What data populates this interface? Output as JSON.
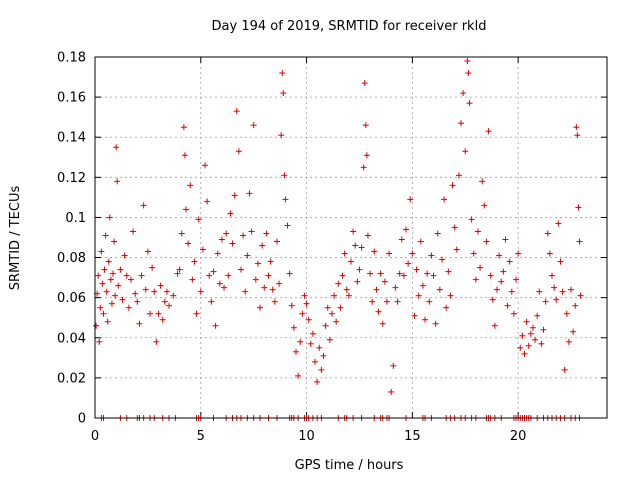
{
  "chart_data": {
    "type": "scatter",
    "title": "Day 194 of 2019, SRMTID for receiver rkld",
    "xlabel": "GPS time / hours",
    "ylabel": "SRMTID / TECUs",
    "xlim": [
      0,
      24.2
    ],
    "ylim": [
      0,
      0.18
    ],
    "xticks": [
      0,
      5,
      10,
      15,
      20
    ],
    "xtick_labels": [
      "0",
      "5",
      "10",
      "15",
      "20"
    ],
    "yticks": [
      0,
      0.02,
      0.04,
      0.06,
      0.08,
      0.1,
      0.12,
      0.14,
      0.16,
      0.18
    ],
    "ytick_labels": [
      "0",
      "0.02",
      "0.04",
      "0.06",
      "0.08",
      "0.1",
      "0.12",
      "0.14",
      "0.16",
      "0.18"
    ],
    "grid": true,
    "marker": "+",
    "color": "#dd0000",
    "series": [
      {
        "name": "SRMTID",
        "points": [
          [
            0.05,
            0.046
          ],
          [
            0.1,
            0.062
          ],
          [
            0.15,
            0.071
          ],
          [
            0.2,
            0.038
          ],
          [
            0.25,
            0.055
          ],
          [
            0.3,
            0.083
          ],
          [
            0.35,
            0.067
          ],
          [
            0.4,
            0.052
          ],
          [
            0.45,
            0.074
          ],
          [
            0.5,
            0.091
          ],
          [
            0.55,
            0.063
          ],
          [
            0.6,
            0.048
          ],
          [
            0.65,
            0.078
          ],
          [
            0.7,
            0.1
          ],
          [
            0.75,
            0.069
          ],
          [
            0.8,
            0.057
          ],
          [
            0.85,
            0.072
          ],
          [
            0.9,
            0.088
          ],
          [
            0.95,
            0.061
          ],
          [
            1.0,
            0.135
          ],
          [
            1.05,
            0.118
          ],
          [
            1.1,
            0.066
          ],
          [
            1.2,
            0.074
          ],
          [
            1.3,
            0.059
          ],
          [
            1.4,
            0.081
          ],
          [
            1.5,
            0.071
          ],
          [
            1.6,
            0.055
          ],
          [
            1.7,
            0.069
          ],
          [
            1.8,
            0.093
          ],
          [
            1.9,
            0.062
          ],
          [
            2.0,
            0.058
          ],
          [
            2.1,
            0.047
          ],
          [
            2.2,
            0.071
          ],
          [
            2.3,
            0.106
          ],
          [
            2.4,
            0.064
          ],
          [
            2.5,
            0.083
          ],
          [
            2.6,
            0.052
          ],
          [
            2.7,
            0.075
          ],
          [
            2.8,
            0.063
          ],
          [
            2.9,
            0.038
          ],
          [
            3.0,
            0.052
          ],
          [
            3.1,
            0.066
          ],
          [
            3.2,
            0.049
          ],
          [
            3.3,
            0.058
          ],
          [
            3.4,
            0.063
          ],
          [
            3.5,
            0.056
          ],
          [
            3.7,
            0.061
          ],
          [
            3.9,
            0.072
          ],
          [
            4.0,
            0.074
          ],
          [
            4.1,
            0.092
          ],
          [
            4.2,
            0.145
          ],
          [
            4.25,
            0.131
          ],
          [
            4.3,
            0.104
          ],
          [
            4.4,
            0.087
          ],
          [
            4.5,
            0.116
          ],
          [
            4.6,
            0.069
          ],
          [
            4.7,
            0.078
          ],
          [
            4.8,
            0.052
          ],
          [
            4.9,
            0.099
          ],
          [
            5.0,
            0.063
          ],
          [
            5.1,
            0.084
          ],
          [
            5.2,
            0.126
          ],
          [
            5.3,
            0.108
          ],
          [
            5.4,
            0.071
          ],
          [
            5.5,
            0.058
          ],
          [
            5.6,
            0.073
          ],
          [
            5.7,
            0.046
          ],
          [
            5.8,
            0.082
          ],
          [
            5.9,
            0.067
          ],
          [
            6.0,
            0.089
          ],
          [
            6.1,
            0.065
          ],
          [
            6.2,
            0.092
          ],
          [
            6.3,
            0.071
          ],
          [
            6.4,
            0.102
          ],
          [
            6.5,
            0.087
          ],
          [
            6.6,
            0.111
          ],
          [
            6.7,
            0.153
          ],
          [
            6.8,
            0.133
          ],
          [
            6.9,
            0.074
          ],
          [
            7.0,
            0.091
          ],
          [
            7.1,
            0.063
          ],
          [
            7.2,
            0.081
          ],
          [
            7.3,
            0.112
          ],
          [
            7.4,
            0.093
          ],
          [
            7.5,
            0.146
          ],
          [
            7.6,
            0.069
          ],
          [
            7.7,
            0.077
          ],
          [
            7.8,
            0.055
          ],
          [
            7.9,
            0.086
          ],
          [
            8.0,
            0.065
          ],
          [
            8.1,
            0.092
          ],
          [
            8.2,
            0.071
          ],
          [
            8.3,
            0.078
          ],
          [
            8.4,
            0.064
          ],
          [
            8.5,
            0.058
          ],
          [
            8.6,
            0.088
          ],
          [
            8.7,
            0.067
          ],
          [
            8.8,
            0.141
          ],
          [
            8.85,
            0.172
          ],
          [
            8.9,
            0.162
          ],
          [
            8.95,
            0.121
          ],
          [
            9.0,
            0.109
          ],
          [
            9.1,
            0.096
          ],
          [
            9.2,
            0.072
          ],
          [
            9.3,
            0.056
          ],
          [
            9.4,
            0.045
          ],
          [
            9.5,
            0.033
          ],
          [
            9.6,
            0.021
          ],
          [
            9.7,
            0.038
          ],
          [
            9.8,
            0.052
          ],
          [
            9.9,
            0.061
          ],
          [
            10.0,
            0.057
          ],
          [
            10.1,
            0.049
          ],
          [
            10.2,
            0.037
          ],
          [
            10.3,
            0.042
          ],
          [
            10.4,
            0.028
          ],
          [
            10.5,
            0.018
          ],
          [
            10.6,
            0.035
          ],
          [
            10.7,
            0.024
          ],
          [
            10.8,
            0.031
          ],
          [
            10.9,
            0.046
          ],
          [
            11.0,
            0.055
          ],
          [
            11.1,
            0.039
          ],
          [
            11.2,
            0.052
          ],
          [
            11.3,
            0.061
          ],
          [
            11.4,
            0.048
          ],
          [
            11.5,
            0.067
          ],
          [
            11.6,
            0.055
          ],
          [
            11.7,
            0.071
          ],
          [
            11.8,
            0.082
          ],
          [
            11.9,
            0.064
          ],
          [
            12.0,
            0.061
          ],
          [
            12.1,
            0.078
          ],
          [
            12.2,
            0.093
          ],
          [
            12.3,
            0.086
          ],
          [
            12.4,
            0.068
          ],
          [
            12.5,
            0.074
          ],
          [
            12.6,
            0.085
          ],
          [
            12.7,
            0.125
          ],
          [
            12.75,
            0.167
          ],
          [
            12.8,
            0.146
          ],
          [
            12.85,
            0.131
          ],
          [
            12.9,
            0.091
          ],
          [
            13.0,
            0.072
          ],
          [
            13.1,
            0.058
          ],
          [
            13.2,
            0.083
          ],
          [
            13.3,
            0.064
          ],
          [
            13.4,
            0.053
          ],
          [
            13.5,
            0.072
          ],
          [
            13.6,
            0.047
          ],
          [
            13.7,
            0.068
          ],
          [
            13.8,
            0.058
          ],
          [
            13.9,
            0.082
          ],
          [
            14.0,
            0.013
          ],
          [
            14.1,
            0.026
          ],
          [
            14.2,
            0.065
          ],
          [
            14.3,
            0.058
          ],
          [
            14.4,
            0.072
          ],
          [
            14.5,
            0.089
          ],
          [
            14.6,
            0.071
          ],
          [
            14.7,
            0.094
          ],
          [
            14.8,
            0.077
          ],
          [
            14.9,
            0.109
          ],
          [
            15.0,
            0.082
          ],
          [
            15.1,
            0.051
          ],
          [
            15.2,
            0.074
          ],
          [
            15.3,
            0.061
          ],
          [
            15.4,
            0.088
          ],
          [
            15.5,
            0.066
          ],
          [
            15.6,
            0.049
          ],
          [
            15.7,
            0.072
          ],
          [
            15.8,
            0.058
          ],
          [
            15.9,
            0.081
          ],
          [
            16.0,
            0.071
          ],
          [
            16.1,
            0.047
          ],
          [
            16.2,
            0.092
          ],
          [
            16.3,
            0.064
          ],
          [
            16.4,
            0.079
          ],
          [
            16.5,
            0.109
          ],
          [
            16.6,
            0.055
          ],
          [
            16.7,
            0.073
          ],
          [
            16.8,
            0.061
          ],
          [
            16.9,
            0.116
          ],
          [
            17.0,
            0.095
          ],
          [
            17.1,
            0.084
          ],
          [
            17.2,
            0.121
          ],
          [
            17.3,
            0.147
          ],
          [
            17.4,
            0.162
          ],
          [
            17.5,
            0.133
          ],
          [
            17.6,
            0.178
          ],
          [
            17.65,
            0.172
          ],
          [
            17.7,
            0.157
          ],
          [
            17.8,
            0.099
          ],
          [
            17.9,
            0.082
          ],
          [
            18.0,
            0.069
          ],
          [
            18.1,
            0.093
          ],
          [
            18.2,
            0.075
          ],
          [
            18.3,
            0.118
          ],
          [
            18.4,
            0.106
          ],
          [
            18.5,
            0.088
          ],
          [
            18.6,
            0.143
          ],
          [
            18.7,
            0.071
          ],
          [
            18.8,
            0.059
          ],
          [
            18.9,
            0.046
          ],
          [
            19.0,
            0.064
          ],
          [
            19.1,
            0.081
          ],
          [
            19.2,
            0.068
          ],
          [
            19.3,
            0.073
          ],
          [
            19.4,
            0.089
          ],
          [
            19.5,
            0.056
          ],
          [
            19.6,
            0.078
          ],
          [
            19.7,
            0.063
          ],
          [
            19.8,
            0.052
          ],
          [
            19.9,
            0.069
          ],
          [
            20.0,
            0.082
          ],
          [
            20.1,
            0.035
          ],
          [
            20.2,
            0.041
          ],
          [
            20.3,
            0.032
          ],
          [
            20.4,
            0.048
          ],
          [
            20.5,
            0.036
          ],
          [
            20.6,
            0.042
          ],
          [
            20.7,
            0.045
          ],
          [
            20.8,
            0.039
          ],
          [
            20.9,
            0.051
          ],
          [
            21.0,
            0.063
          ],
          [
            21.1,
            0.037
          ],
          [
            21.2,
            0.044
          ],
          [
            21.3,
            0.058
          ],
          [
            21.4,
            0.092
          ],
          [
            21.5,
            0.082
          ],
          [
            21.6,
            0.071
          ],
          [
            21.7,
            0.065
          ],
          [
            21.8,
            0.059
          ],
          [
            21.9,
            0.097
          ],
          [
            22.0,
            0.078
          ],
          [
            22.1,
            0.063
          ],
          [
            22.2,
            0.024
          ],
          [
            22.3,
            0.052
          ],
          [
            22.4,
            0.038
          ],
          [
            22.5,
            0.064
          ],
          [
            22.6,
            0.043
          ],
          [
            22.7,
            0.056
          ],
          [
            22.75,
            0.145
          ],
          [
            22.8,
            0.141
          ],
          [
            22.85,
            0.105
          ],
          [
            22.9,
            0.088
          ],
          [
            22.95,
            0.061
          ]
        ]
      }
    ],
    "zero_markers_x": [
      0.3,
      0.4,
      1.2,
      1.5,
      2.0,
      2.1,
      2.3,
      2.6,
      2.8,
      3.2,
      3.5,
      3.8,
      4.8,
      4.9,
      5.0,
      5.6,
      6.2,
      6.5,
      6.7,
      6.9,
      7.2,
      7.5,
      7.8,
      8.2,
      8.6,
      9.2,
      9.3,
      9.4,
      9.6,
      9.9,
      10.0,
      10.1,
      10.3,
      10.5,
      10.7,
      11.5,
      11.8,
      11.9,
      12.2,
      12.6,
      13.2,
      13.5,
      13.6,
      13.8,
      13.9,
      14.7,
      15.5,
      15.6,
      15.9,
      16.6,
      16.8,
      17.0,
      17.3,
      17.5,
      17.8,
      18.0,
      18.5,
      18.6,
      18.7,
      18.9,
      19.2,
      19.8,
      19.9,
      20.0,
      20.1,
      20.2,
      20.3,
      20.4,
      20.5,
      20.6,
      20.9,
      21.2,
      21.4,
      21.6,
      21.8,
      22.0,
      22.2,
      22.5,
      22.7,
      22.9
    ]
  }
}
